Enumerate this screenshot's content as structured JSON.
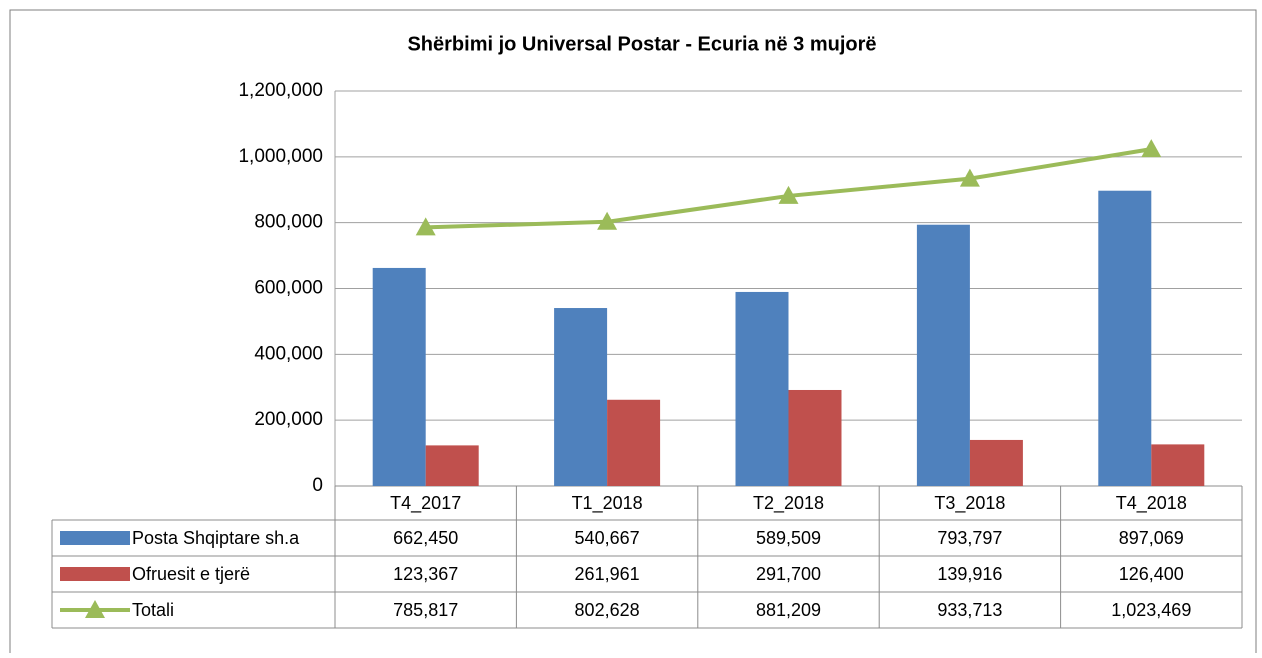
{
  "chart_data": {
    "type": "bar",
    "title": "Shërbimi jo Universal Postar - Ecuria në 3 mujorë",
    "categories": [
      "T4_2017",
      "T1_2018",
      "T2_2018",
      "T3_2018",
      "T4_2018"
    ],
    "series": [
      {
        "name": "Posta Shqiptare sh.a",
        "color": "#4f81bd",
        "type": "bar",
        "values": [
          662450,
          540667,
          589509,
          793797,
          897069
        ],
        "value_labels": [
          "662,450",
          "540,667",
          "589,509",
          "793,797",
          "897,069"
        ]
      },
      {
        "name": "Ofruesit e tjerë",
        "color": "#c0504d",
        "type": "bar",
        "values": [
          123367,
          261961,
          291700,
          139916,
          126400
        ],
        "value_labels": [
          "123,367",
          "261,961",
          "291,700",
          "139,916",
          "126,400"
        ]
      },
      {
        "name": "Totali",
        "color": "#9bbb59",
        "type": "line",
        "values": [
          785817,
          802628,
          881209,
          933713,
          1023469
        ],
        "value_labels": [
          "785,817",
          "802,628",
          "881,209",
          "933,713",
          "1,023,469"
        ]
      }
    ],
    "ylim": [
      0,
      1200000
    ],
    "yticks": [
      0,
      {
        "value": 200000,
        "label": "200,000"
      },
      {
        "value": 400000,
        "label": "400,000"
      },
      {
        "value": 600000,
        "label": "600,000"
      },
      {
        "value": 800000,
        "label": "800,000"
      },
      {
        "value": 1000000,
        "label": "1,000,000"
      },
      {
        "value": 1200000,
        "label": "1,200,000"
      }
    ],
    "grid": true
  }
}
